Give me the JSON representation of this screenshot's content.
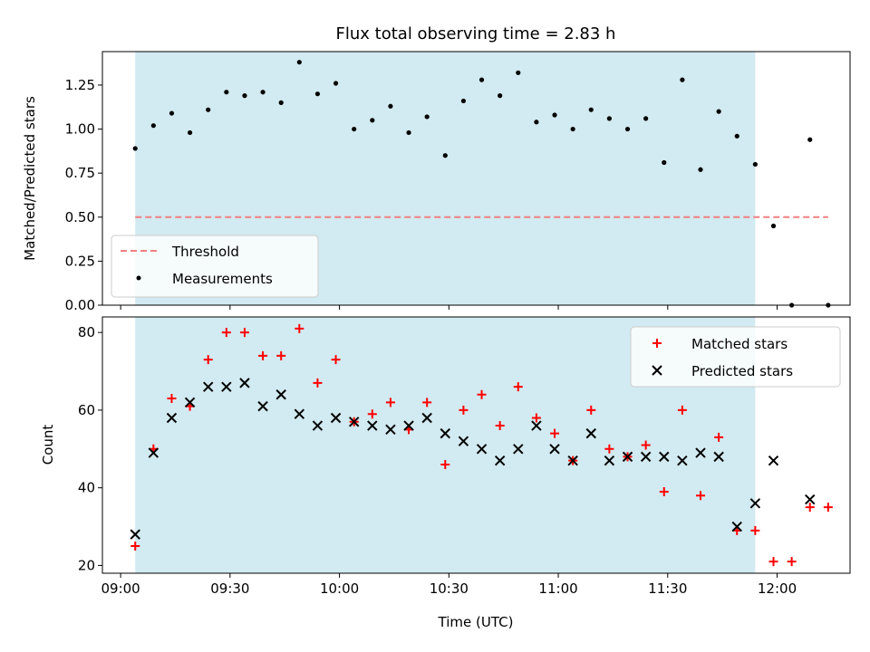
{
  "chart_data": [
    {
      "type": "scatter",
      "title": "Flux total observing time = 2.83 h",
      "ylabel": "Matched/Predicted stars",
      "xlabel": "",
      "ylim": [
        0,
        1.44
      ],
      "yticks": [
        "0.00",
        "0.25",
        "0.50",
        "0.75",
        "1.00",
        "1.25"
      ],
      "shaded_interval": [
        "09:04",
        "11:54"
      ],
      "threshold": {
        "name": "Threshold",
        "value": 0.5,
        "x_range": [
          "09:04",
          "12:14"
        ],
        "color": "#f08080"
      },
      "legend": {
        "placement": "lower-left",
        "entries": [
          "Threshold",
          "Measurements"
        ]
      },
      "series": [
        {
          "name": "Measurements",
          "marker": "dot",
          "color": "#000000",
          "x": [
            "09:04",
            "09:09",
            "09:14",
            "09:19",
            "09:24",
            "09:29",
            "09:34",
            "09:39",
            "09:44",
            "09:49",
            "09:54",
            "09:59",
            "10:04",
            "10:09",
            "10:14",
            "10:19",
            "10:24",
            "10:29",
            "10:34",
            "10:39",
            "10:44",
            "10:49",
            "10:54",
            "10:59",
            "11:04",
            "11:09",
            "11:14",
            "11:19",
            "11:24",
            "11:29",
            "11:34",
            "11:39",
            "11:44",
            "11:49",
            "11:54",
            "11:59",
            "12:04",
            "12:09",
            "12:14"
          ],
          "y": [
            0.89,
            1.02,
            1.09,
            0.98,
            1.11,
            1.21,
            1.19,
            1.21,
            1.15,
            1.38,
            1.2,
            1.26,
            1.0,
            1.05,
            1.13,
            0.98,
            1.07,
            0.85,
            1.16,
            1.28,
            1.19,
            1.32,
            1.04,
            1.08,
            1.0,
            1.11,
            1.06,
            1.0,
            1.06,
            0.81,
            1.28,
            0.77,
            1.1,
            0.96,
            0.8,
            0.45,
            0.0,
            0.94,
            0.0
          ]
        }
      ]
    },
    {
      "type": "scatter",
      "title": "",
      "ylabel": "Count",
      "xlabel": "Time (UTC)",
      "ylim": [
        18,
        84
      ],
      "yticks": [
        "20",
        "40",
        "60",
        "80"
      ],
      "xticks": [
        "09:00",
        "09:30",
        "10:00",
        "10:30",
        "11:00",
        "11:30",
        "12:00"
      ],
      "xlim": [
        "08:55",
        "12:20"
      ],
      "shaded_interval": [
        "09:04",
        "11:54"
      ],
      "legend": {
        "placement": "upper-right",
        "entries": [
          "Matched stars",
          "Predicted stars"
        ]
      },
      "series": [
        {
          "name": "Matched stars",
          "marker": "plus",
          "color": "#ff0000",
          "x": [
            "09:04",
            "09:09",
            "09:14",
            "09:19",
            "09:24",
            "09:29",
            "09:34",
            "09:39",
            "09:44",
            "09:49",
            "09:54",
            "09:59",
            "10:04",
            "10:09",
            "10:14",
            "10:19",
            "10:24",
            "10:29",
            "10:34",
            "10:39",
            "10:44",
            "10:49",
            "10:54",
            "10:59",
            "11:04",
            "11:09",
            "11:14",
            "11:19",
            "11:24",
            "11:29",
            "11:34",
            "11:39",
            "11:44",
            "11:49",
            "11:54",
            "11:59",
            "12:04",
            "12:09",
            "12:14"
          ],
          "y": [
            25,
            50,
            63,
            61,
            73,
            80,
            80,
            74,
            74,
            81,
            67,
            73,
            57,
            59,
            62,
            55,
            62,
            46,
            60,
            64,
            56,
            66,
            58,
            54,
            47,
            60,
            50,
            48,
            51,
            39,
            60,
            38,
            53,
            29,
            29,
            21,
            21,
            35,
            35
          ]
        },
        {
          "name": "Predicted stars",
          "marker": "x",
          "color": "#000000",
          "x": [
            "09:04",
            "09:09",
            "09:14",
            "09:19",
            "09:24",
            "09:29",
            "09:34",
            "09:39",
            "09:44",
            "09:49",
            "09:54",
            "09:59",
            "10:04",
            "10:09",
            "10:14",
            "10:19",
            "10:24",
            "10:29",
            "10:34",
            "10:39",
            "10:44",
            "10:49",
            "10:54",
            "10:59",
            "11:04",
            "11:09",
            "11:14",
            "11:19",
            "11:24",
            "11:29",
            "11:34",
            "11:39",
            "11:44",
            "11:49",
            "11:54",
            "11:59",
            "12:09"
          ],
          "y": [
            28,
            49,
            58,
            62,
            66,
            66,
            67,
            61,
            64,
            59,
            56,
            58,
            57,
            56,
            55,
            56,
            58,
            54,
            52,
            50,
            47,
            50,
            56,
            50,
            47,
            54,
            47,
            48,
            48,
            48,
            47,
            49,
            48,
            30,
            36,
            47,
            37
          ]
        }
      ]
    }
  ],
  "colors": {
    "shade": "#add8e6",
    "threshold": "#f08080",
    "matched": "#ff0000",
    "predicted": "#000000"
  }
}
